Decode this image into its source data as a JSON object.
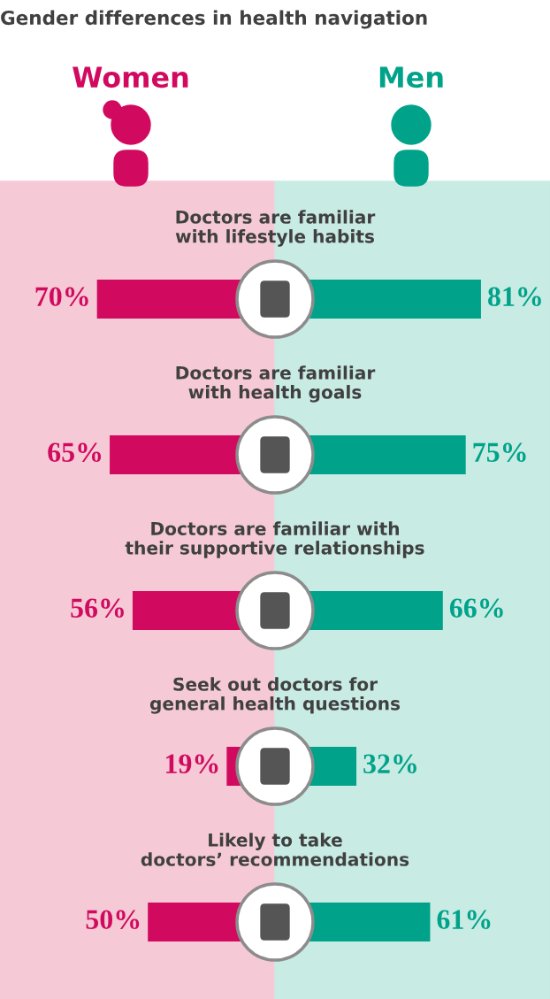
{
  "chart_data": [
    {
      "type": "bar",
      "orientation": "horizontal",
      "title": "Gender differences in health navigation",
      "categories": [
        "Doctors are familiar\nwith lifestyle habits",
        "Doctors are familiar\nwith health goals",
        "Doctors are familiar with\ntheir supportive relationships",
        "Seek out doctors for\ngeneral health questions",
        "Likely to take\ndoctors’ recommendations"
      ],
      "series": [
        {
          "name": "Women",
          "color": "#d10a5f",
          "values": [
            70,
            65,
            56,
            19,
            50
          ],
          "value_labels": [
            "70%",
            "65%",
            "56%",
            "19%",
            "50%"
          ]
        }
      ],
      "legend": false
    },
    {
      "type": "bar",
      "orientation": "horizontal",
      "categories": [
        null,
        null,
        null,
        null,
        null
      ],
      "series": [
        {
          "name": "Men",
          "color": "#00a38a",
          "values": [
            81,
            75,
            66,
            32,
            61
          ],
          "value_labels": [
            "81%",
            "75%",
            "66%",
            "32%",
            "61%"
          ]
        }
      ],
      "legend": false
    }
  ]
}
